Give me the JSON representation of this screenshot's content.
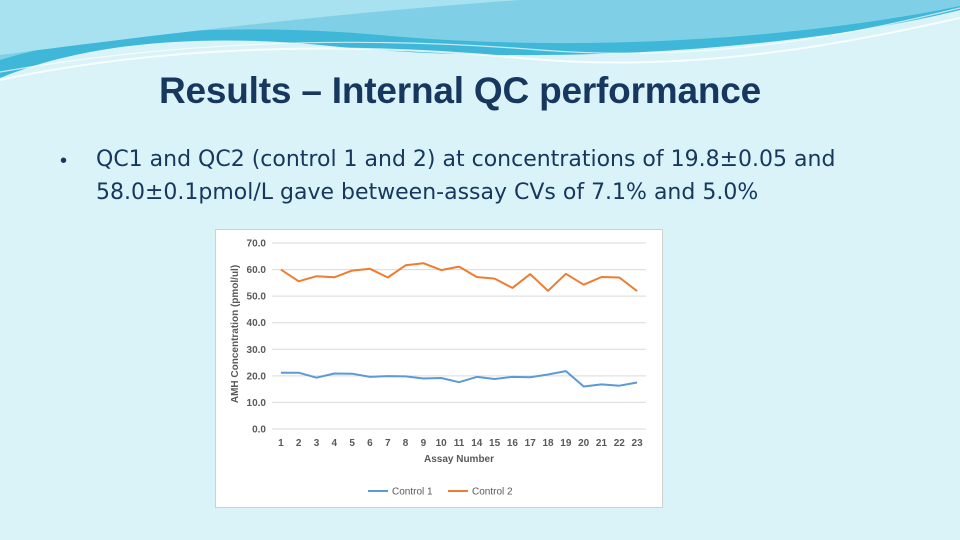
{
  "slide": {
    "title": "Results – Internal QC performance",
    "bullet_symbol": "•",
    "bullet_lines": [
      "QC1 and QC2 (control 1 and 2) at concentrations of 19.8±0.05 and",
      "58.0±0.1pmol/L gave between-assay CVs of 7.1% and 5.0%"
    ]
  },
  "colors": {
    "background": "#d9f3f8",
    "title": "#17375e",
    "control1": "#5b9bd5",
    "control2": "#ed7d31"
  },
  "chart_data": {
    "type": "line",
    "title": "",
    "xlabel": "Assay Number",
    "ylabel": "AMH Concentration (pmol/ul)",
    "x": [
      "1",
      "2",
      "3",
      "4",
      "5",
      "6",
      "7",
      "8",
      "9",
      "10",
      "11",
      "14",
      "15",
      "16",
      "17",
      "18",
      "19",
      "20",
      "21",
      "22",
      "23"
    ],
    "ylim": [
      0,
      70
    ],
    "yticks": [
      "0.0",
      "10.0",
      "20.0",
      "30.0",
      "40.0",
      "50.0",
      "60.0",
      "70.0"
    ],
    "grid": true,
    "legend_position": "bottom",
    "series": [
      {
        "name": "Control 1",
        "color": "#5b9bd5",
        "values": [
          21.2,
          21.2,
          19.3,
          20.9,
          20.8,
          19.6,
          19.9,
          19.8,
          19.0,
          19.2,
          17.6,
          19.6,
          18.8,
          19.6,
          19.5,
          20.5,
          21.8,
          16.0,
          16.8,
          16.3,
          17.5
        ]
      },
      {
        "name": "Control 2",
        "color": "#ed7d31",
        "values": [
          60.0,
          55.6,
          57.5,
          57.1,
          59.6,
          60.3,
          57.0,
          61.6,
          62.4,
          59.8,
          61.1,
          57.2,
          56.6,
          53.1,
          58.3,
          52.0,
          58.4,
          54.3,
          57.2,
          57.0,
          51.9
        ]
      }
    ]
  }
}
